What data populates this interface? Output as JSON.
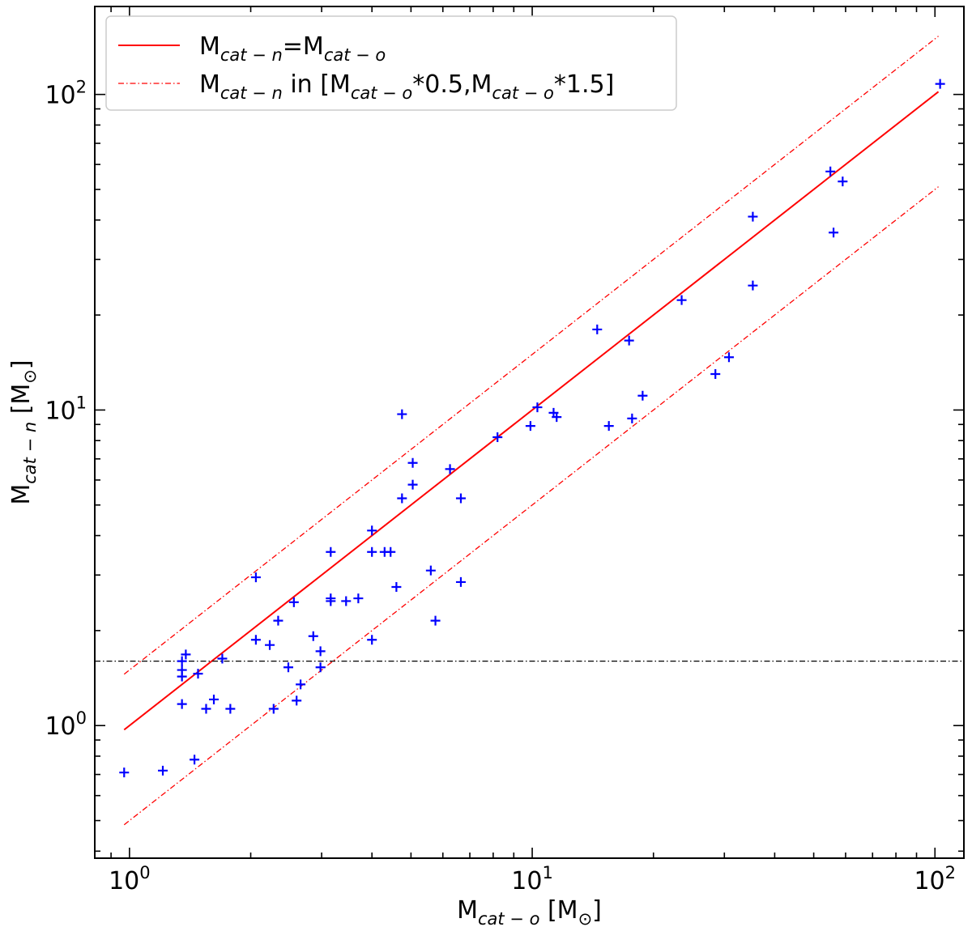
{
  "chart_data": {
    "type": "scatter",
    "title": "",
    "xlabel": {
      "main": "M",
      "sub": "cat − o",
      "unit": " [M",
      "unit_sub": "⊙",
      "close": "]"
    },
    "ylabel": {
      "main": "M",
      "sub": "cat − n",
      "unit": " [M",
      "unit_sub": "⊙",
      "close": "]"
    },
    "xscale": "log",
    "yscale": "log",
    "xlim": [
      0.82,
      118
    ],
    "ylim": [
      0.38,
      190
    ],
    "xticks": [
      {
        "value": 1,
        "base": "10",
        "exp": "0"
      },
      {
        "value": 10,
        "base": "10",
        "exp": "1"
      },
      {
        "value": 100,
        "base": "10",
        "exp": "2"
      }
    ],
    "yticks": [
      {
        "value": 1,
        "base": "10",
        "exp": "0"
      },
      {
        "value": 10,
        "base": "10",
        "exp": "1"
      },
      {
        "value": 100,
        "base": "10",
        "exp": "2"
      }
    ],
    "legend": {
      "position": "upper-left",
      "entries": [
        {
          "kind": "solid",
          "parts": [
            [
              "M",
              ""
            ],
            [
              "cat − n",
              "sub"
            ],
            [
              "=M",
              ""
            ],
            [
              "cat − o",
              "sub"
            ]
          ]
        },
        {
          "kind": "dashdot",
          "parts": [
            [
              "M",
              ""
            ],
            [
              "cat − n",
              "sub"
            ],
            [
              " in [M",
              ""
            ],
            [
              "cat − o",
              "sub"
            ],
            [
              "*0.5,M",
              ""
            ],
            [
              "cat − o",
              "sub"
            ],
            [
              "*1.5]",
              ""
            ]
          ]
        }
      ]
    },
    "lines": [
      {
        "name": "equality",
        "slope_factor": 1.0,
        "x_range": [
          0.97,
          102
        ],
        "color": "#ff0000",
        "style": "solid"
      },
      {
        "name": "upper bound",
        "slope_factor": 1.5,
        "x_range": [
          0.97,
          102
        ],
        "color": "#ff0000",
        "style": "dashdot"
      },
      {
        "name": "lower bound",
        "slope_factor": 0.5,
        "x_range": [
          0.97,
          102
        ],
        "color": "#ff0000",
        "style": "dashdot"
      }
    ],
    "hline": {
      "y": 1.6,
      "color": "#000000",
      "style": "dashdot"
    },
    "marker_color": "#0000ff",
    "points": [
      [
        0.97,
        0.71
      ],
      [
        1.21,
        0.72
      ],
      [
        1.35,
        1.6
      ],
      [
        1.35,
        1.5
      ],
      [
        1.35,
        1.43
      ],
      [
        1.35,
        1.17
      ],
      [
        1.38,
        1.68
      ],
      [
        1.45,
        0.78
      ],
      [
        1.48,
        1.46
      ],
      [
        1.55,
        1.13
      ],
      [
        1.62,
        1.21
      ],
      [
        1.7,
        1.63
      ],
      [
        1.78,
        1.13
      ],
      [
        2.06,
        2.95
      ],
      [
        2.06,
        1.87
      ],
      [
        2.23,
        1.8
      ],
      [
        2.28,
        1.13
      ],
      [
        2.34,
        2.15
      ],
      [
        2.48,
        1.53
      ],
      [
        2.56,
        2.46
      ],
      [
        2.6,
        1.2
      ],
      [
        2.66,
        1.35
      ],
      [
        2.86,
        1.92
      ],
      [
        2.98,
        1.72
      ],
      [
        2.98,
        1.53
      ],
      [
        3.16,
        3.55
      ],
      [
        3.16,
        2.53
      ],
      [
        3.16,
        2.48
      ],
      [
        3.45,
        2.48
      ],
      [
        3.7,
        2.53
      ],
      [
        4.0,
        4.15
      ],
      [
        4.0,
        3.55
      ],
      [
        4.0,
        1.87
      ],
      [
        4.3,
        3.55
      ],
      [
        4.45,
        3.55
      ],
      [
        4.6,
        2.75
      ],
      [
        4.75,
        9.7
      ],
      [
        4.75,
        5.25
      ],
      [
        5.05,
        6.8
      ],
      [
        5.05,
        5.8
      ],
      [
        5.6,
        3.1
      ],
      [
        5.75,
        2.15
      ],
      [
        6.25,
        6.5
      ],
      [
        6.65,
        5.25
      ],
      [
        6.65,
        2.85
      ],
      [
        8.2,
        8.2
      ],
      [
        9.9,
        8.9
      ],
      [
        10.3,
        10.2
      ],
      [
        11.3,
        9.8
      ],
      [
        11.5,
        9.5
      ],
      [
        14.5,
        18.0
      ],
      [
        15.5,
        8.9
      ],
      [
        17.4,
        16.6
      ],
      [
        17.7,
        9.4
      ],
      [
        18.8,
        11.1
      ],
      [
        23.5,
        22.3
      ],
      [
        28.5,
        13.0
      ],
      [
        30.8,
        14.7
      ],
      [
        35.3,
        41.0
      ],
      [
        35.3,
        24.8
      ],
      [
        55.0,
        57.0
      ],
      [
        56.0,
        36.5
      ],
      [
        59.0,
        53.0
      ],
      [
        103.0,
        108.0
      ]
    ]
  }
}
